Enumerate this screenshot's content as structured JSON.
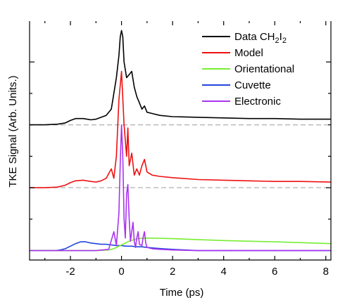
{
  "chart_data": {
    "type": "line",
    "xlabel": "Time (ps)",
    "ylabel": "TKE Signal (Arb. Units.)",
    "xlim": [
      -3.6,
      8.2
    ],
    "ylim": [
      -0.15,
      3.65
    ],
    "x_ticks": [
      -2,
      0,
      2,
      4,
      6,
      8
    ],
    "x_tick_labels": [
      "-2",
      "0",
      "2",
      "4",
      "6",
      "8"
    ],
    "y_major_ticks": [
      1,
      3
    ],
    "y_minor_ticks": [
      0.5,
      1.5,
      2,
      2.5
    ],
    "baselines": [
      {
        "series": "Data CH2I2",
        "y": 2.0
      },
      {
        "series": "Model",
        "y": 1.0
      }
    ],
    "legend_position": "top-right",
    "legend": [
      {
        "key": "data",
        "label": "Data CH",
        "sub1": "2",
        "mid": "I",
        "sub2": "2"
      },
      {
        "key": "model",
        "label": "Model"
      },
      {
        "key": "orient",
        "label": "Orientational"
      },
      {
        "key": "cuvette",
        "label": "Cuvette"
      },
      {
        "key": "electronic",
        "label": "Electronic"
      }
    ],
    "series": [
      {
        "name": "Data CH2I2",
        "key": "data",
        "color": "#000000",
        "x": [
          -3.6,
          -3.0,
          -2.5,
          -2.2,
          -2.0,
          -1.8,
          -1.5,
          -1.2,
          -1.0,
          -0.8,
          -0.6,
          -0.4,
          -0.3,
          -0.2,
          -0.1,
          -0.05,
          0.0,
          0.05,
          0.1,
          0.2,
          0.3,
          0.4,
          0.5,
          0.6,
          0.7,
          0.8,
          0.9,
          1.0,
          1.2,
          1.5,
          2.0,
          3.0,
          4.0,
          5.0,
          6.0,
          7.0,
          8.2
        ],
        "values": [
          2.0,
          2.0,
          2.01,
          2.03,
          2.07,
          2.1,
          2.1,
          2.08,
          2.09,
          2.12,
          2.15,
          2.25,
          2.5,
          2.75,
          3.1,
          3.4,
          3.5,
          3.4,
          3.0,
          2.75,
          2.8,
          2.85,
          2.6,
          2.45,
          2.35,
          2.25,
          2.3,
          2.2,
          2.18,
          2.15,
          2.13,
          2.12,
          2.11,
          2.1,
          2.1,
          2.09,
          2.09
        ]
      },
      {
        "name": "Model",
        "key": "model",
        "color": "#ee1111",
        "x": [
          -3.6,
          -3.0,
          -2.5,
          -2.2,
          -2.0,
          -1.8,
          -1.5,
          -1.2,
          -1.0,
          -0.8,
          -0.6,
          -0.4,
          -0.3,
          -0.2,
          -0.1,
          0.0,
          0.1,
          0.2,
          0.25,
          0.3,
          0.4,
          0.5,
          0.6,
          0.7,
          0.8,
          0.9,
          1.0,
          1.2,
          1.5,
          2.0,
          3.0,
          4.0,
          5.0,
          6.0,
          7.0,
          8.2
        ],
        "values": [
          1.0,
          1.0,
          1.01,
          1.04,
          1.08,
          1.11,
          1.12,
          1.1,
          1.09,
          1.11,
          1.15,
          1.3,
          1.15,
          1.5,
          2.4,
          2.85,
          2.0,
          1.5,
          1.95,
          1.35,
          1.55,
          1.2,
          1.3,
          1.2,
          1.35,
          1.45,
          1.25,
          1.2,
          1.18,
          1.16,
          1.13,
          1.12,
          1.11,
          1.1,
          1.1,
          1.09
        ]
      },
      {
        "name": "Orientational",
        "key": "orient",
        "color": "#77ee33",
        "x": [
          -3.6,
          -1.0,
          -0.5,
          -0.3,
          0.0,
          0.3,
          0.6,
          1.0,
          2.0,
          4.0,
          6.0,
          8.2
        ],
        "values": [
          0.0,
          0.0,
          0.01,
          0.03,
          0.09,
          0.15,
          0.19,
          0.2,
          0.19,
          0.16,
          0.14,
          0.11
        ]
      },
      {
        "name": "Cuvette",
        "key": "cuvette",
        "color": "#2244dd",
        "x": [
          -3.6,
          -2.6,
          -2.4,
          -2.2,
          -2.0,
          -1.8,
          -1.6,
          -1.4,
          -1.2,
          -1.0,
          -0.8,
          -0.6,
          -0.4,
          -0.2,
          0.0,
          0.2,
          0.4,
          0.6,
          0.8,
          1.0,
          1.3,
          1.6,
          2.0,
          2.5,
          3.0,
          4.0,
          8.2
        ],
        "values": [
          0.0,
          0.0,
          0.01,
          0.03,
          0.07,
          0.11,
          0.14,
          0.14,
          0.12,
          0.11,
          0.1,
          0.1,
          0.09,
          0.08,
          0.08,
          0.07,
          0.07,
          0.06,
          0.06,
          0.05,
          0.04,
          0.03,
          0.02,
          0.01,
          0.0,
          0.0,
          0.0
        ]
      },
      {
        "name": "Electronic",
        "key": "electronic",
        "color": "#aa33ee",
        "x": [
          -3.6,
          -1.0,
          -0.5,
          -0.3,
          -0.2,
          -0.1,
          -0.05,
          0.0,
          0.05,
          0.1,
          0.15,
          0.2,
          0.25,
          0.3,
          0.35,
          0.4,
          0.45,
          0.5,
          0.55,
          0.6,
          0.65,
          0.7,
          0.8,
          0.85,
          0.9,
          0.95,
          1.0,
          1.2,
          1.5,
          2.0,
          3.0,
          8.2
        ],
        "values": [
          0.0,
          0.0,
          0.02,
          0.3,
          0.08,
          0.6,
          1.4,
          2.0,
          1.5,
          0.5,
          0.2,
          0.9,
          1.05,
          0.5,
          0.15,
          0.3,
          0.45,
          0.15,
          0.05,
          0.2,
          0.3,
          0.1,
          0.08,
          0.22,
          0.3,
          0.12,
          0.05,
          0.03,
          0.02,
          0.01,
          0.0,
          0.0
        ]
      }
    ]
  }
}
